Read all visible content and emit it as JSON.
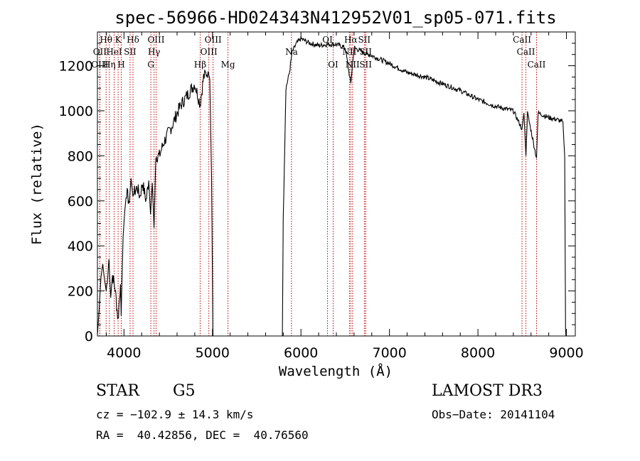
{
  "chart_data": {
    "type": "line",
    "title": "spec-56966-HD024343N412952V01_sp05-071.fits",
    "xlabel": "Wavelength (Å)",
    "ylabel": "Flux (relative)",
    "xlim": [
      3700,
      9100
    ],
    "ylim": [
      0,
      1350
    ],
    "x_ticks": [
      4000,
      5000,
      6000,
      7000,
      8000,
      9000
    ],
    "y_ticks": [
      0,
      200,
      400,
      600,
      800,
      1000,
      1200
    ],
    "grid": false,
    "spectrum_knots": [
      [
        3700,
        5
      ],
      [
        3720,
        120
      ],
      [
        3740,
        260
      ],
      [
        3760,
        320
      ],
      [
        3780,
        250
      ],
      [
        3800,
        200
      ],
      [
        3830,
        340
      ],
      [
        3850,
        170
      ],
      [
        3870,
        270
      ],
      [
        3900,
        210
      ],
      [
        3933,
        70
      ],
      [
        3960,
        230
      ],
      [
        3968,
        90
      ],
      [
        3990,
        440
      ],
      [
        4010,
        560
      ],
      [
        4030,
        640
      ],
      [
        4060,
        590
      ],
      [
        4080,
        700
      ],
      [
        4101,
        620
      ],
      [
        4120,
        640
      ],
      [
        4150,
        660
      ],
      [
        4180,
        620
      ],
      [
        4210,
        680
      ],
      [
        4250,
        600
      ],
      [
        4280,
        690
      ],
      [
        4300,
        540
      ],
      [
        4320,
        680
      ],
      [
        4340,
        480
      ],
      [
        4360,
        800
      ],
      [
        4400,
        800
      ],
      [
        4450,
        860
      ],
      [
        4500,
        900
      ],
      [
        4550,
        940
      ],
      [
        4600,
        990
      ],
      [
        4650,
        1030
      ],
      [
        4700,
        1060
      ],
      [
        4750,
        1090
      ],
      [
        4800,
        1120
      ],
      [
        4861,
        1030
      ],
      [
        4900,
        1150
      ],
      [
        4950,
        1175
      ],
      [
        4970,
        1140
      ],
      [
        4990,
        700
      ],
      [
        5005,
        0
      ],
      [
        5790,
        0
      ],
      [
        5800,
        520
      ],
      [
        5830,
        1100
      ],
      [
        5870,
        1170
      ],
      [
        5900,
        1260
      ],
      [
        5950,
        1300
      ],
      [
        6000,
        1320
      ],
      [
        6050,
        1310
      ],
      [
        6100,
        1300
      ],
      [
        6200,
        1290
      ],
      [
        6300,
        1295
      ],
      [
        6400,
        1295
      ],
      [
        6500,
        1280
      ],
      [
        6563,
        1120
      ],
      [
        6600,
        1280
      ],
      [
        6700,
        1260
      ],
      [
        6800,
        1245
      ],
      [
        7000,
        1210
      ],
      [
        7200,
        1170
      ],
      [
        7400,
        1150
      ],
      [
        7600,
        1120
      ],
      [
        7800,
        1090
      ],
      [
        8000,
        1050
      ],
      [
        8200,
        1020
      ],
      [
        8400,
        1000
      ],
      [
        8498,
        920
      ],
      [
        8520,
        990
      ],
      [
        8542,
        800
      ],
      [
        8560,
        990
      ],
      [
        8662,
        790
      ],
      [
        8680,
        990
      ],
      [
        8800,
        970
      ],
      [
        8900,
        960
      ],
      [
        8960,
        950
      ],
      [
        8980,
        800
      ],
      [
        8990,
        30
      ],
      [
        8995,
        0
      ]
    ],
    "lines": [
      {
        "label": "Hθ",
        "wl": 3798,
        "row": 1
      },
      {
        "label": "OII",
        "wl": 3727,
        "row": 2
      },
      {
        "label": "OIII",
        "wl": 3727,
        "row": 3
      },
      {
        "label": "K",
        "wl": 3934,
        "row": 1
      },
      {
        "label": "HeI",
        "wl": 3889,
        "row": 2
      },
      {
        "label": "Hη",
        "wl": 3835,
        "row": 3
      },
      {
        "label": "H",
        "wl": 3969,
        "row": 3
      },
      {
        "label": "SII",
        "wl": 4069,
        "row": 2
      },
      {
        "label": "Hδ",
        "wl": 4102,
        "row": 1
      },
      {
        "label": "OIII",
        "wl": 4363,
        "row": 1
      },
      {
        "label": "Hγ",
        "wl": 4340,
        "row": 2
      },
      {
        "label": "G",
        "wl": 4304,
        "row": 3
      },
      {
        "label": "Hβ",
        "wl": 4861,
        "row": 3
      },
      {
        "label": "OIII",
        "wl": 4959,
        "row": 2
      },
      {
        "label": "OIII",
        "wl": 5007,
        "row": 1
      },
      {
        "label": "Mg",
        "wl": 5175,
        "row": 3
      },
      {
        "label": "Na",
        "wl": 5893,
        "row": 2
      },
      {
        "label": "OI",
        "wl": 6300,
        "row": 1
      },
      {
        "label": "OI",
        "wl": 6364,
        "row": 3
      },
      {
        "label": "Hα",
        "wl": 6563,
        "row": 1
      },
      {
        "label": "NII",
        "wl": 6548,
        "row": 2
      },
      {
        "label": "NII",
        "wl": 6583,
        "row": 3
      },
      {
        "label": "SII",
        "wl": 6716,
        "row": 1
      },
      {
        "label": "SII",
        "wl": 6731,
        "row": 2
      },
      {
        "label": "SII",
        "wl": 6731,
        "row": 3
      },
      {
        "label": "CaII",
        "wl": 8498,
        "row": 1
      },
      {
        "label": "CaII",
        "wl": 8542,
        "row": 2
      },
      {
        "label": "CaII",
        "wl": 8662,
        "row": 3
      }
    ]
  },
  "info": {
    "object_class": "STAR",
    "subclass": "G5",
    "survey": "LAMOST DR3",
    "cz": "cz = −102.9 ± 14.3 km/s",
    "obs_date": "Obs−Date: 20141104",
    "coords": "RA =  40.42856, DEC =  40.76560"
  }
}
